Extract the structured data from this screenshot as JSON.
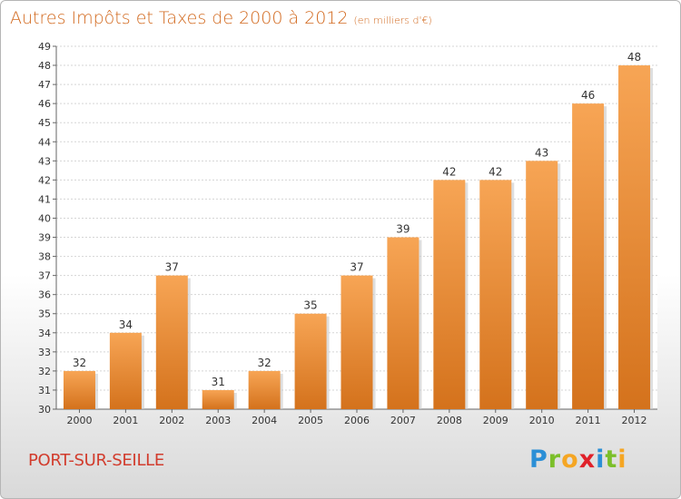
{
  "title": "Autres Impôts et Taxes de 2000 à 2012",
  "subtitle": "(en milliers d'€)",
  "commune": "PORT-SUR-SEILLE",
  "logo": {
    "letters": [
      "P",
      "r",
      "o",
      "x",
      "i",
      "t",
      "i"
    ],
    "colors": [
      "#2b8fd6",
      "#7bbf2a",
      "#f5a623",
      "#e0212a",
      "#2b8fd6",
      "#7bbf2a",
      "#f5a623"
    ]
  },
  "colors": {
    "bar_top": "#f7a555",
    "bar_bottom": "#d4721c",
    "accent": "#d2691e"
  },
  "chart_data": {
    "type": "bar",
    "categories": [
      "2000",
      "2001",
      "2002",
      "2003",
      "2004",
      "2005",
      "2006",
      "2007",
      "2008",
      "2009",
      "2010",
      "2011",
      "2012"
    ],
    "values": [
      32,
      34,
      37,
      31,
      32,
      35,
      37,
      39,
      42,
      42,
      43,
      46,
      48
    ],
    "ylim": [
      30,
      49
    ],
    "yticks": [
      30,
      31,
      32,
      33,
      34,
      35,
      36,
      37,
      38,
      39,
      40,
      41,
      42,
      43,
      44,
      45,
      46,
      47,
      48,
      49
    ],
    "grid": true,
    "data_labels": true
  }
}
